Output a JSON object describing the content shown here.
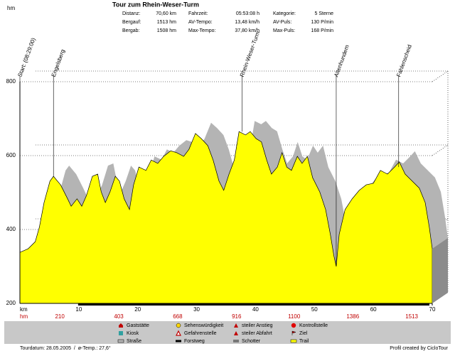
{
  "title": "Tour zum Rhein-Weser-Turm",
  "stats": [
    [
      {
        "label": "Distanz:",
        "value": "70,60 km"
      },
      {
        "label": "Fahrzeit:",
        "value": "05:53:08 h"
      },
      {
        "label": "Kategorie:",
        "value": "5 Sterne"
      }
    ],
    [
      {
        "label": "Bergauf:",
        "value": "1513 hm"
      },
      {
        "label": "AV-Tempo:",
        "value": "13,48 km/h"
      },
      {
        "label": "AV-Puls:",
        "value": "130 P/min"
      }
    ],
    [
      {
        "label": "Bergab:",
        "value": "1508 hm"
      },
      {
        "label": "Max-Tempo:",
        "value": "37,80 km/h"
      },
      {
        "label": "Max-Puls:",
        "value": "168 P/min"
      }
    ]
  ],
  "chart_data": {
    "type": "area",
    "y_unit": "hm",
    "x_unit": "km",
    "x": [
      0,
      1.4,
      2.6,
      3.3,
      4.1,
      5.1,
      5.7,
      6.9,
      8.1,
      8.7,
      9.7,
      10.5,
      11.3,
      12.3,
      13.2,
      13.8,
      14.5,
      15.3,
      16.2,
      16.9,
      17.7,
      18.6,
      19.3,
      20.2,
      21.4,
      22.3,
      23.4,
      24.4,
      25.6,
      26.6,
      27.8,
      28.7,
      29.8,
      30.8,
      31.9,
      32.8,
      33.8,
      34.6,
      35.5,
      36.4,
      37.2,
      38.3,
      39.1,
      40.1,
      41,
      41.9,
      42.7,
      43.7,
      44.5,
      45.3,
      46.1,
      47.1,
      47.9,
      48.8,
      49.7,
      50.9,
      51.9,
      52.7,
      53.3,
      53.7,
      54.2,
      55.2,
      56.4,
      57.6,
      58.8,
      60,
      61.2,
      62.4,
      63.6,
      64.4,
      65.4,
      66.6,
      67.8,
      68.8,
      69.5,
      70
    ],
    "values": [
      338,
      348,
      367,
      406,
      473,
      531,
      544,
      521,
      483,
      463,
      483,
      463,
      492,
      544,
      550,
      502,
      473,
      502,
      544,
      531,
      483,
      454,
      521,
      569,
      560,
      588,
      579,
      598,
      613,
      608,
      598,
      617,
      660,
      646,
      627,
      588,
      531,
      506,
      550,
      588,
      665,
      656,
      665,
      646,
      637,
      588,
      550,
      569,
      608,
      569,
      560,
      598,
      579,
      598,
      540,
      502,
      454,
      387,
      329,
      300,
      387,
      454,
      483,
      506,
      521,
      525,
      560,
      550,
      569,
      583,
      550,
      531,
      512,
      473,
      406,
      348
    ],
    "color": "#ffff00",
    "shadow_color": "#b4b4b4",
    "xlim": [
      0,
      70
    ],
    "ylim": [
      200,
      800
    ],
    "xticks": [
      10,
      20,
      30,
      40,
      50,
      60,
      70
    ],
    "yticks": [
      200,
      400,
      600,
      800
    ],
    "waypoints": [
      {
        "label": "Start: (08:29:00)",
        "km": 0
      },
      {
        "label": "Engelsberg",
        "km": 5.7
      },
      {
        "label": "Rhein-Weser-Turm",
        "km": 37.7
      },
      {
        "label": "Altenhundem",
        "km": 53.7
      },
      {
        "label": "Fahlenscheid",
        "km": 64.3
      }
    ],
    "climb": {
      "label": "hm",
      "values": [
        210,
        403,
        668,
        916,
        1100,
        1386,
        1513
      ]
    }
  },
  "legend": [
    [
      "Gaststätte",
      "Kiosk",
      "Straße"
    ],
    [
      "Sehenswürdigkeit",
      "Gefahrenstelle",
      "Forstweg"
    ],
    [
      "steiler Anstieg",
      "steiler Abfahrt",
      "Schotter"
    ],
    [
      "Kontrollstelle",
      "Ziel",
      "Trail"
    ]
  ],
  "footer": {
    "left": "Tourdatum: 28.05.2005  /  ø-Temp.: 27,6°",
    "right": "Profil created by CicloTour"
  }
}
